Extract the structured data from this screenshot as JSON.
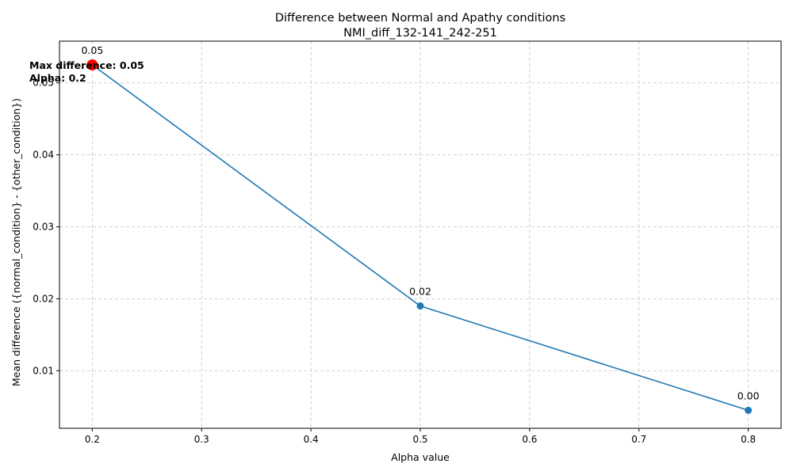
{
  "chart_data": {
    "type": "line",
    "title": "Difference between Normal and Apathy conditions",
    "subtitle": "NMI_diff_132-141_242-251",
    "xlabel": "Alpha value",
    "ylabel": "Mean difference ({normal_condition} - {other_condition})",
    "xlim": [
      0.17,
      0.83
    ],
    "ylim": [
      0.002,
      0.0558
    ],
    "xticks": [
      0.2,
      0.3,
      0.4,
      0.5,
      0.6,
      0.7,
      0.8
    ],
    "xtick_labels": [
      "0.2",
      "0.3",
      "0.4",
      "0.5",
      "0.6",
      "0.7",
      "0.8"
    ],
    "yticks": [
      0.01,
      0.02,
      0.03,
      0.04,
      0.05
    ],
    "ytick_labels": [
      "0.01",
      "0.02",
      "0.03",
      "0.04",
      "0.05"
    ],
    "grid": true,
    "series": [
      {
        "x": [
          0.2,
          0.5,
          0.8
        ],
        "y": [
          0.0525,
          0.019,
          0.0045
        ],
        "color": "#1f77b4",
        "marker": "circle"
      }
    ],
    "data_labels": [
      "0.05",
      "0.02",
      "0.00"
    ],
    "highlight": {
      "x": 0.2,
      "y": 0.0525,
      "color": "#ff0000"
    },
    "annotation": {
      "max_difference_label": "Max difference: 0.05",
      "alpha_label": "Alpha: 0.2"
    }
  }
}
